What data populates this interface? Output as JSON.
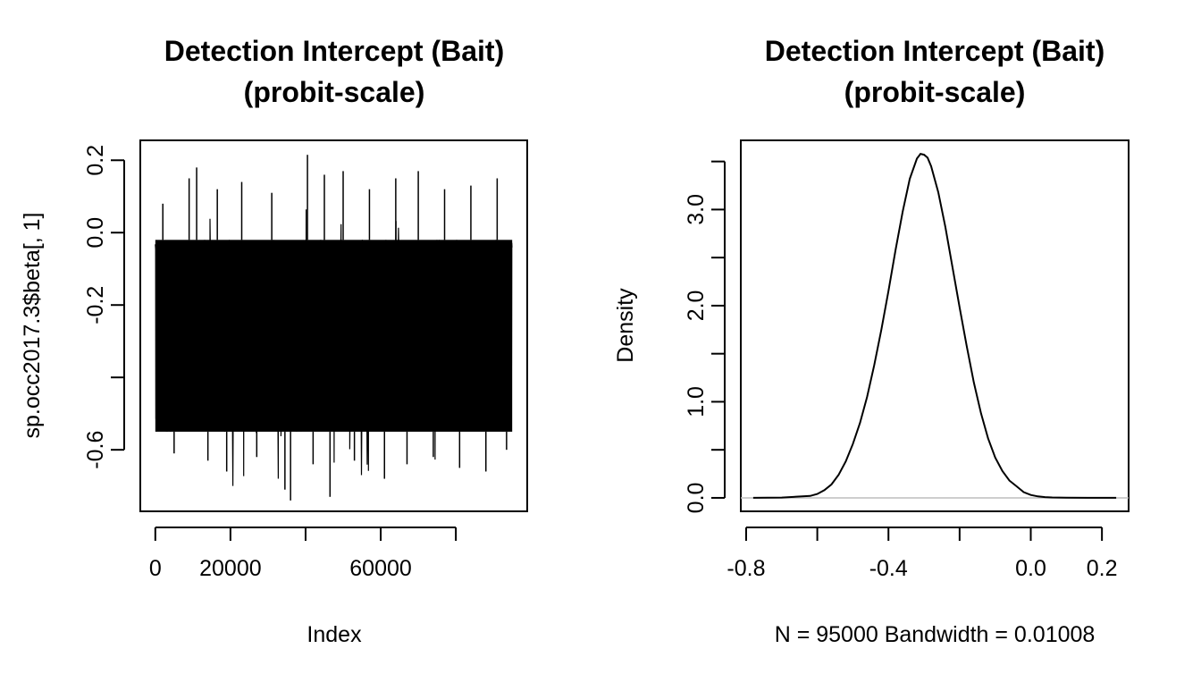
{
  "chart_data": [
    {
      "type": "line",
      "title_line1": "Detection Intercept (Bait)",
      "title_line2": "(probit-scale)",
      "xlabel": "Index",
      "ylabel": "sp.occ2017.3$beta[, 1]",
      "x_ticks": [
        0,
        20000,
        40000,
        60000,
        80000
      ],
      "x_tick_labels": [
        "0",
        "20000",
        "",
        "60000",
        ""
      ],
      "y_ticks": [
        -0.6,
        -0.4,
        -0.2,
        0.0,
        0.2
      ],
      "y_tick_labels": [
        "-0.6",
        "",
        "-0.2",
        "0.0",
        "0.2"
      ],
      "xlim": [
        -4000,
        99000
      ],
      "ylim": [
        -0.77,
        0.255
      ],
      "n_iterations": 95000,
      "trace_summary": {
        "center": -0.29,
        "dense_band": [
          -0.55,
          -0.02
        ],
        "min": -0.74,
        "max": 0.215
      },
      "series_color": "#000000"
    },
    {
      "type": "line",
      "title_line1": "Detection Intercept (Bait)",
      "title_line2": "(probit-scale)",
      "xlabel": "N = 95000   Bandwidth = 0.01008",
      "ylabel": "Density",
      "x_ticks": [
        -0.8,
        -0.6,
        -0.4,
        -0.2,
        0.0,
        0.2
      ],
      "x_tick_labels": [
        "-0.8",
        "",
        "-0.4",
        "",
        "0.0",
        "0.2"
      ],
      "y_ticks": [
        0.0,
        0.5,
        1.0,
        1.5,
        2.0,
        2.5,
        3.0,
        3.5
      ],
      "y_tick_labels": [
        "0.0",
        "",
        "1.0",
        "",
        "2.0",
        "",
        "3.0",
        ""
      ],
      "xlim": [
        -0.815,
        0.275
      ],
      "ylim": [
        -0.14,
        3.72
      ],
      "density_points": {
        "x": [
          -0.78,
          -0.7,
          -0.62,
          -0.6,
          -0.58,
          -0.56,
          -0.54,
          -0.52,
          -0.5,
          -0.48,
          -0.46,
          -0.44,
          -0.42,
          -0.4,
          -0.38,
          -0.36,
          -0.34,
          -0.32,
          -0.31,
          -0.3,
          -0.29,
          -0.28,
          -0.26,
          -0.24,
          -0.22,
          -0.2,
          -0.18,
          -0.16,
          -0.14,
          -0.12,
          -0.1,
          -0.08,
          -0.06,
          -0.04,
          -0.02,
          0.0,
          0.02,
          0.04,
          0.06,
          0.1,
          0.16,
          0.24
        ],
        "y": [
          0.0,
          0.003,
          0.02,
          0.04,
          0.08,
          0.14,
          0.24,
          0.38,
          0.56,
          0.78,
          1.05,
          1.38,
          1.75,
          2.15,
          2.58,
          2.98,
          3.32,
          3.53,
          3.58,
          3.57,
          3.54,
          3.45,
          3.18,
          2.82,
          2.4,
          1.98,
          1.58,
          1.2,
          0.88,
          0.62,
          0.42,
          0.28,
          0.18,
          0.12,
          0.06,
          0.03,
          0.015,
          0.008,
          0.004,
          0.002,
          0.0005,
          0.0
        ]
      },
      "baseline_color": "#bebebe",
      "series_color": "#000000"
    }
  ]
}
